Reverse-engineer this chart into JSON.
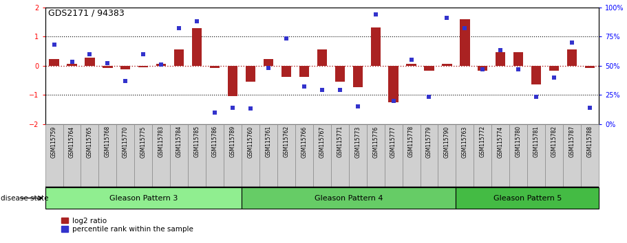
{
  "title": "GDS2171 / 94383",
  "samples": [
    "GSM115759",
    "GSM115764",
    "GSM115765",
    "GSM115768",
    "GSM115770",
    "GSM115775",
    "GSM115783",
    "GSM115784",
    "GSM115785",
    "GSM115786",
    "GSM115789",
    "GSM115760",
    "GSM115761",
    "GSM115762",
    "GSM115766",
    "GSM115767",
    "GSM115771",
    "GSM115773",
    "GSM115776",
    "GSM115777",
    "GSM115778",
    "GSM115779",
    "GSM115790",
    "GSM115763",
    "GSM115772",
    "GSM115774",
    "GSM115780",
    "GSM115781",
    "GSM115782",
    "GSM115787",
    "GSM115788"
  ],
  "log2_ratio": [
    0.22,
    0.07,
    0.28,
    -0.08,
    -0.12,
    -0.05,
    0.07,
    0.55,
    1.28,
    -0.08,
    -1.05,
    -0.55,
    0.22,
    -0.38,
    -0.38,
    0.55,
    -0.55,
    -0.75,
    1.3,
    -1.25,
    0.05,
    -0.18,
    0.05,
    1.6,
    -0.18,
    0.45,
    0.45,
    -0.65,
    -0.18,
    0.55,
    -0.08
  ],
  "percentile": [
    68,
    53,
    60,
    52,
    37,
    60,
    51,
    82,
    88,
    10,
    14,
    13,
    48,
    73,
    32,
    29,
    29,
    15,
    94,
    20,
    55,
    23,
    91,
    82,
    47,
    63,
    47,
    23,
    40,
    70,
    14
  ],
  "groups": [
    {
      "label": "Gleason Pattern 3",
      "start": 0,
      "end": 11,
      "color": "#90EE90"
    },
    {
      "label": "Gleason Pattern 4",
      "start": 11,
      "end": 23,
      "color": "#66CC66"
    },
    {
      "label": "Gleason Pattern 5",
      "start": 23,
      "end": 31,
      "color": "#44BB44"
    }
  ],
  "bar_color": "#AA2222",
  "dot_color": "#3333CC",
  "ylim": [
    -2,
    2
  ],
  "y2lim": [
    0,
    100
  ],
  "yticks_left": [
    -2,
    -1,
    0,
    1,
    2
  ],
  "yticks_right": [
    0,
    25,
    50,
    75,
    100
  ],
  "background_color": "#ffffff",
  "plot_bg": "#ffffff",
  "xtick_bg": "#d0d0d0"
}
